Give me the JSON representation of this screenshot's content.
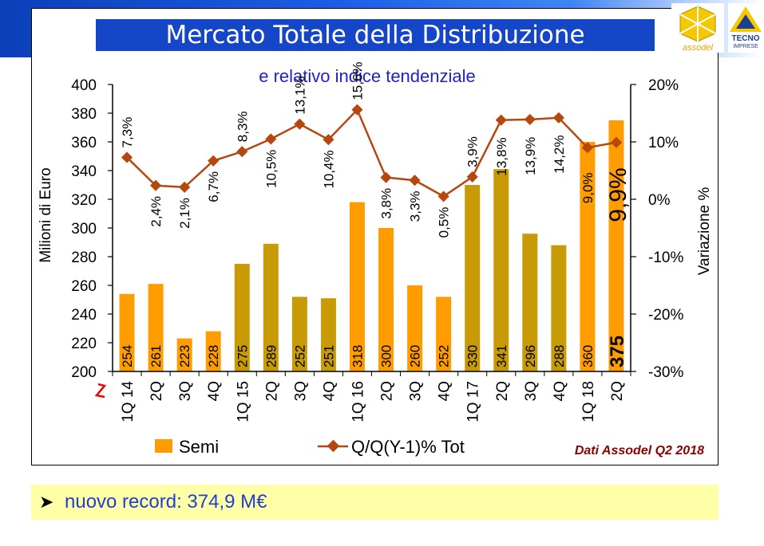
{
  "slide": {
    "title": "Mercato Totale della Distribuzione",
    "subtitle": "e relativo indice tendenziale",
    "logo_left_text": "assodel",
    "logo_right_text_1": "TECNO",
    "logo_right_text_2": "IMPRESE"
  },
  "note": {
    "text": "nuovo record: 374,9 M€"
  },
  "chart_data": {
    "type": "bar",
    "categories": [
      "1Q 14",
      "2Q",
      "3Q",
      "4Q",
      "1Q 15",
      "2Q",
      "3Q",
      "4Q",
      "1Q 16",
      "2Q",
      "3Q",
      "4Q",
      "1Q 17",
      "2Q",
      "3Q",
      "4Q",
      "1Q 18",
      "2Q"
    ],
    "series": [
      {
        "name": "Semi",
        "type": "bar",
        "axis": "left",
        "values": [
          254,
          261,
          223,
          228,
          275,
          289,
          252,
          251,
          318,
          300,
          260,
          252,
          330,
          341,
          296,
          288,
          360,
          375
        ],
        "value_labels": [
          "254",
          "261",
          "223",
          "228",
          "275",
          "289",
          "252",
          "251",
          "318",
          "300",
          "260",
          "252",
          "330",
          "341",
          "296",
          "288",
          "360",
          "375"
        ],
        "bar_colors": [
          "#ff9c00",
          "#ff9c00",
          "#ff9c00",
          "#ff9c00",
          "#c79a06",
          "#c79a06",
          "#c79a06",
          "#c79a06",
          "#ff9c00",
          "#ff9c00",
          "#ff9c00",
          "#ff9c00",
          "#c79a06",
          "#c79a06",
          "#c79a06",
          "#c79a06",
          "#ff9c00",
          "#ff9c00"
        ]
      },
      {
        "name": "Q/Q(Y-1)% Tot",
        "type": "line",
        "axis": "right",
        "values": [
          7.3,
          2.4,
          2.1,
          6.7,
          8.3,
          10.5,
          13.1,
          10.4,
          15.6,
          3.8,
          3.3,
          0.5,
          3.9,
          13.8,
          13.9,
          14.2,
          9.0,
          9.9
        ],
        "value_labels": [
          "7,3%",
          "2,4%",
          "2,1%",
          "6,7%",
          "8,3%",
          "10,5%",
          "13,1%",
          "10,4%",
          "15,6%",
          "3,8%",
          "3,3%",
          "0,5%",
          "3,9%",
          "13,8%",
          "13,9%",
          "14,2%",
          "9,0%",
          "9,9%"
        ],
        "color": "#b5470f"
      }
    ],
    "ylabel": "Milioni di Euro",
    "ylim": [
      200,
      400
    ],
    "yticks": [
      "200",
      "220",
      "240",
      "260",
      "280",
      "300",
      "320",
      "340",
      "360",
      "380",
      "400"
    ],
    "y2label": "Variazione %",
    "y2lim": [
      -30,
      20
    ],
    "y2ticks": [
      "-30%",
      "-20%",
      "-10%",
      "0%",
      "10%",
      "20%"
    ],
    "legend": [
      "Semi",
      "Q/Q(Y-1)% Tot"
    ],
    "legend_position": "bottom",
    "source_note": "Dati Assodel Q2 2018",
    "colors": {
      "orange": "#ff9c00",
      "olive": "#c79a06",
      "line": "#b5470f",
      "source": "#8b0000"
    }
  }
}
